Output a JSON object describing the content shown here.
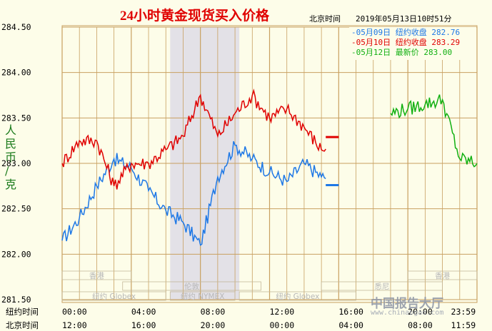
{
  "chart_data": {
    "type": "line",
    "title": "24小时黄金现货买入价格",
    "timestamp_label": "北京时间",
    "timestamp": "2019年05月13日10时51分",
    "ylabel": "人民币/克",
    "ylim": [
      281.5,
      284.5
    ],
    "yticks": [
      "284.50",
      "284.00",
      "283.50",
      "283.00",
      "282.50",
      "282.00",
      "281.50"
    ],
    "x_row1_label": "纽约时间",
    "x_row1_ticks": [
      "00:00",
      "04:00",
      "08:00",
      "12:00",
      "16:00",
      "20:00",
      "23:59"
    ],
    "x_row2_label": "北京时间",
    "x_row2_ticks": [
      "12:00",
      "16:00",
      "20:00",
      "00:00",
      "04:00",
      "08:00",
      "11:59"
    ],
    "x_hours_ny": [
      0,
      1,
      2,
      3,
      4,
      5,
      6,
      7,
      8,
      9,
      10,
      11,
      12,
      13,
      14,
      15,
      16,
      17,
      18,
      19,
      20,
      21,
      22,
      23,
      24
    ],
    "grid": true,
    "shaded_region_ny_hours": [
      6.25,
      10.25
    ],
    "sessions": [
      {
        "name": "香港",
        "start": 0,
        "end": 4
      },
      {
        "name": "伦敦",
        "start": 3.5,
        "end": 11.5
      },
      {
        "name": "纽约 Globex",
        "start": 0,
        "end": 6
      },
      {
        "name": "纽约 NYMEX",
        "start": 6.25,
        "end": 10
      },
      {
        "name": "纽约 Globex",
        "start": 10.25,
        "end": 17
      },
      {
        "name": "悉尼",
        "start": 15,
        "end": 22
      },
      {
        "name": "香港",
        "start": 20,
        "end": 24
      }
    ],
    "series": [
      {
        "name": "05月09日 纽约收盘 282.76",
        "color": "#1e78e6",
        "values": [
          282.15,
          282.4,
          282.75,
          283.05,
          282.95,
          282.7,
          282.48,
          282.35,
          282.1,
          282.85,
          283.2,
          283.05,
          282.9,
          282.8,
          283.0,
          282.85,
          282.85,
          282.9,
          282.95,
          283.0,
          282.9,
          282.85,
          282.95,
          282.85,
          282.95
        ]
      },
      {
        "name": "05月10日 纽约收盘 283.29",
        "color": "#e00000",
        "values": [
          283.0,
          283.25,
          283.25,
          282.75,
          283.0,
          283.0,
          283.15,
          283.3,
          283.75,
          283.3,
          283.55,
          283.75,
          283.5,
          283.6,
          283.4,
          283.15,
          283.3,
          283.29,
          null,
          null,
          null,
          null,
          null,
          null,
          null
        ]
      },
      {
        "name": "05月12日 最新价 283.00",
        "color": "#11b011",
        "values": [
          null,
          null,
          null,
          null,
          null,
          null,
          null,
          null,
          null,
          null,
          null,
          null,
          null,
          null,
          null,
          null,
          null,
          null,
          null,
          283.55,
          283.6,
          283.65,
          283.7,
          283.05,
          283.0
        ]
      }
    ],
    "flat_extensions": [
      {
        "series": 0,
        "y": 282.76,
        "from": 15.25,
        "to": 16.0
      },
      {
        "series": 1,
        "y": 283.29,
        "from": 15.25,
        "to": 16.0
      }
    ]
  },
  "watermark": {
    "text": "中国报告大厅",
    "url": "www.chinabgao.com"
  }
}
